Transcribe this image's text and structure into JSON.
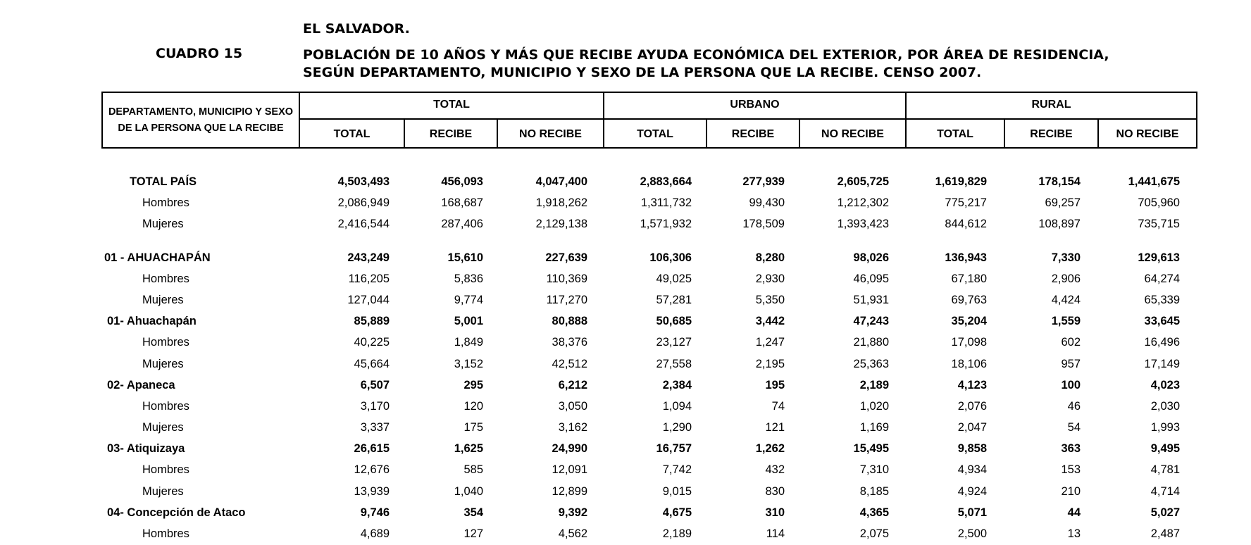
{
  "document": {
    "country": "EL SALVADOR.",
    "table_number": "CUADRO 15",
    "title_line1": "POBLACIÓN DE 10 AÑOS Y MÁS QUE RECIBE AYUDA ECONÓMICA DEL EXTERIOR, POR ÁREA DE RESIDENCIA,",
    "title_line2": "SEGÚN DEPARTAMENTO, MUNICIPIO Y SEXO DE LA PERSONA QUE LA RECIBE. CENSO 2007."
  },
  "header": {
    "row_label_line1": "DEPARTAMENTO, MUNICIPIO Y SEXO",
    "row_label_line2": "DE LA PERSONA QUE LA RECIBE",
    "groups": [
      "TOTAL",
      "URBANO",
      "RURAL"
    ],
    "subcolumns": [
      "TOTAL",
      "RECIBE",
      "NO RECIBE",
      "TOTAL",
      "RECIBE",
      "NO RECIBE",
      "TOTAL",
      "RECIBE",
      "NO RECIBE"
    ]
  },
  "rows": [
    {
      "label": "TOTAL PAÍS",
      "kind": "total",
      "values": [
        "4,503,493",
        "456,093",
        "4,047,400",
        "2,883,664",
        "277,939",
        "2,605,725",
        "1,619,829",
        "178,154",
        "1,441,675"
      ]
    },
    {
      "label": "Hombres",
      "kind": "sex",
      "values": [
        "2,086,949",
        "168,687",
        "1,918,262",
        "1,311,732",
        "99,430",
        "1,212,302",
        "775,217",
        "69,257",
        "705,960"
      ]
    },
    {
      "label": "Mujeres",
      "kind": "sex",
      "values": [
        "2,416,544",
        "287,406",
        "2,129,138",
        "1,571,932",
        "178,509",
        "1,393,423",
        "844,612",
        "108,897",
        "735,715"
      ]
    },
    {
      "label": "01 - AHUACHAPÁN",
      "kind": "dept",
      "values": [
        "243,249",
        "15,610",
        "227,639",
        "106,306",
        "8,280",
        "98,026",
        "136,943",
        "7,330",
        "129,613"
      ]
    },
    {
      "label": "Hombres",
      "kind": "sex",
      "values": [
        "116,205",
        "5,836",
        "110,369",
        "49,025",
        "2,930",
        "46,095",
        "67,180",
        "2,906",
        "64,274"
      ]
    },
    {
      "label": "Mujeres",
      "kind": "sex",
      "values": [
        "127,044",
        "9,774",
        "117,270",
        "57,281",
        "5,350",
        "51,931",
        "69,763",
        "4,424",
        "65,339"
      ]
    },
    {
      "label": "01- Ahuachapán",
      "kind": "mun",
      "values": [
        "85,889",
        "5,001",
        "80,888",
        "50,685",
        "3,442",
        "47,243",
        "35,204",
        "1,559",
        "33,645"
      ]
    },
    {
      "label": "Hombres",
      "kind": "sex",
      "values": [
        "40,225",
        "1,849",
        "38,376",
        "23,127",
        "1,247",
        "21,880",
        "17,098",
        "602",
        "16,496"
      ]
    },
    {
      "label": "Mujeres",
      "kind": "sex",
      "values": [
        "45,664",
        "3,152",
        "42,512",
        "27,558",
        "2,195",
        "25,363",
        "18,106",
        "957",
        "17,149"
      ]
    },
    {
      "label": "02- Apaneca",
      "kind": "mun",
      "values": [
        "6,507",
        "295",
        "6,212",
        "2,384",
        "195",
        "2,189",
        "4,123",
        "100",
        "4,023"
      ]
    },
    {
      "label": "Hombres",
      "kind": "sex",
      "values": [
        "3,170",
        "120",
        "3,050",
        "1,094",
        "74",
        "1,020",
        "2,076",
        "46",
        "2,030"
      ]
    },
    {
      "label": "Mujeres",
      "kind": "sex",
      "values": [
        "3,337",
        "175",
        "3,162",
        "1,290",
        "121",
        "1,169",
        "2,047",
        "54",
        "1,993"
      ]
    },
    {
      "label": "03- Atiquizaya",
      "kind": "mun",
      "values": [
        "26,615",
        "1,625",
        "24,990",
        "16,757",
        "1,262",
        "15,495",
        "9,858",
        "363",
        "9,495"
      ]
    },
    {
      "label": "Hombres",
      "kind": "sex",
      "values": [
        "12,676",
        "585",
        "12,091",
        "7,742",
        "432",
        "7,310",
        "4,934",
        "153",
        "4,781"
      ]
    },
    {
      "label": "Mujeres",
      "kind": "sex",
      "values": [
        "13,939",
        "1,040",
        "12,899",
        "9,015",
        "830",
        "8,185",
        "4,924",
        "210",
        "4,714"
      ]
    },
    {
      "label": "04- Concepción de Ataco",
      "kind": "mun",
      "values": [
        "9,746",
        "354",
        "9,392",
        "4,675",
        "310",
        "4,365",
        "5,071",
        "44",
        "5,027"
      ]
    },
    {
      "label": "Hombres",
      "kind": "sex",
      "values": [
        "4,689",
        "127",
        "4,562",
        "2,189",
        "114",
        "2,075",
        "2,500",
        "13",
        "2,487"
      ]
    }
  ]
}
